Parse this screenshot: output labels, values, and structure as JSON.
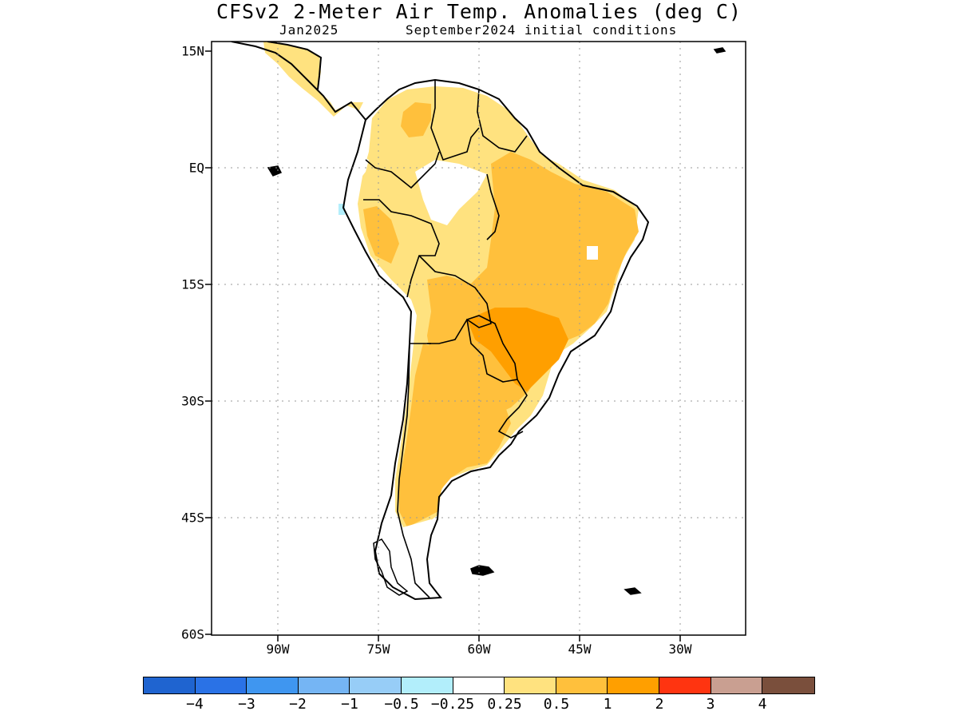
{
  "title": "CFSv2 2-Meter Air Temp. Anomalies (deg C)",
  "subtitle_left": "Jan2025",
  "subtitle_right": "September2024 initial conditions",
  "lat_labels": [
    "15N",
    "EQ",
    "15S",
    "30S",
    "45S",
    "60S"
  ],
  "lon_labels": [
    "90W",
    "75W",
    "60W",
    "45W",
    "30W"
  ],
  "colorbar": {
    "colors": [
      "#1f64d0",
      "#2a72e6",
      "#3f96f0",
      "#75b5f4",
      "#97cdf7",
      "#b2eefb",
      "#ffffff",
      "#ffe27f",
      "#ffc03c",
      "#ff9f00",
      "#ff3410",
      "#c99f91",
      "#7a4f3c"
    ],
    "labels": [
      "−4",
      "−3",
      "−2",
      "−1",
      "−0.5",
      "−0.25",
      "0.25",
      "0.5",
      "1",
      "2",
      "3",
      "4"
    ]
  },
  "map": {
    "fill_colors": {
      "neutral": "#ffffff",
      "anom_0_25_to_0_5": "#ffe27f",
      "anom_0_5_to_1": "#ffc03c",
      "anom_1_to_2": "#ff9f00",
      "anom_neg_0_5_to_neg_0_25": "#b2eefb"
    }
  }
}
